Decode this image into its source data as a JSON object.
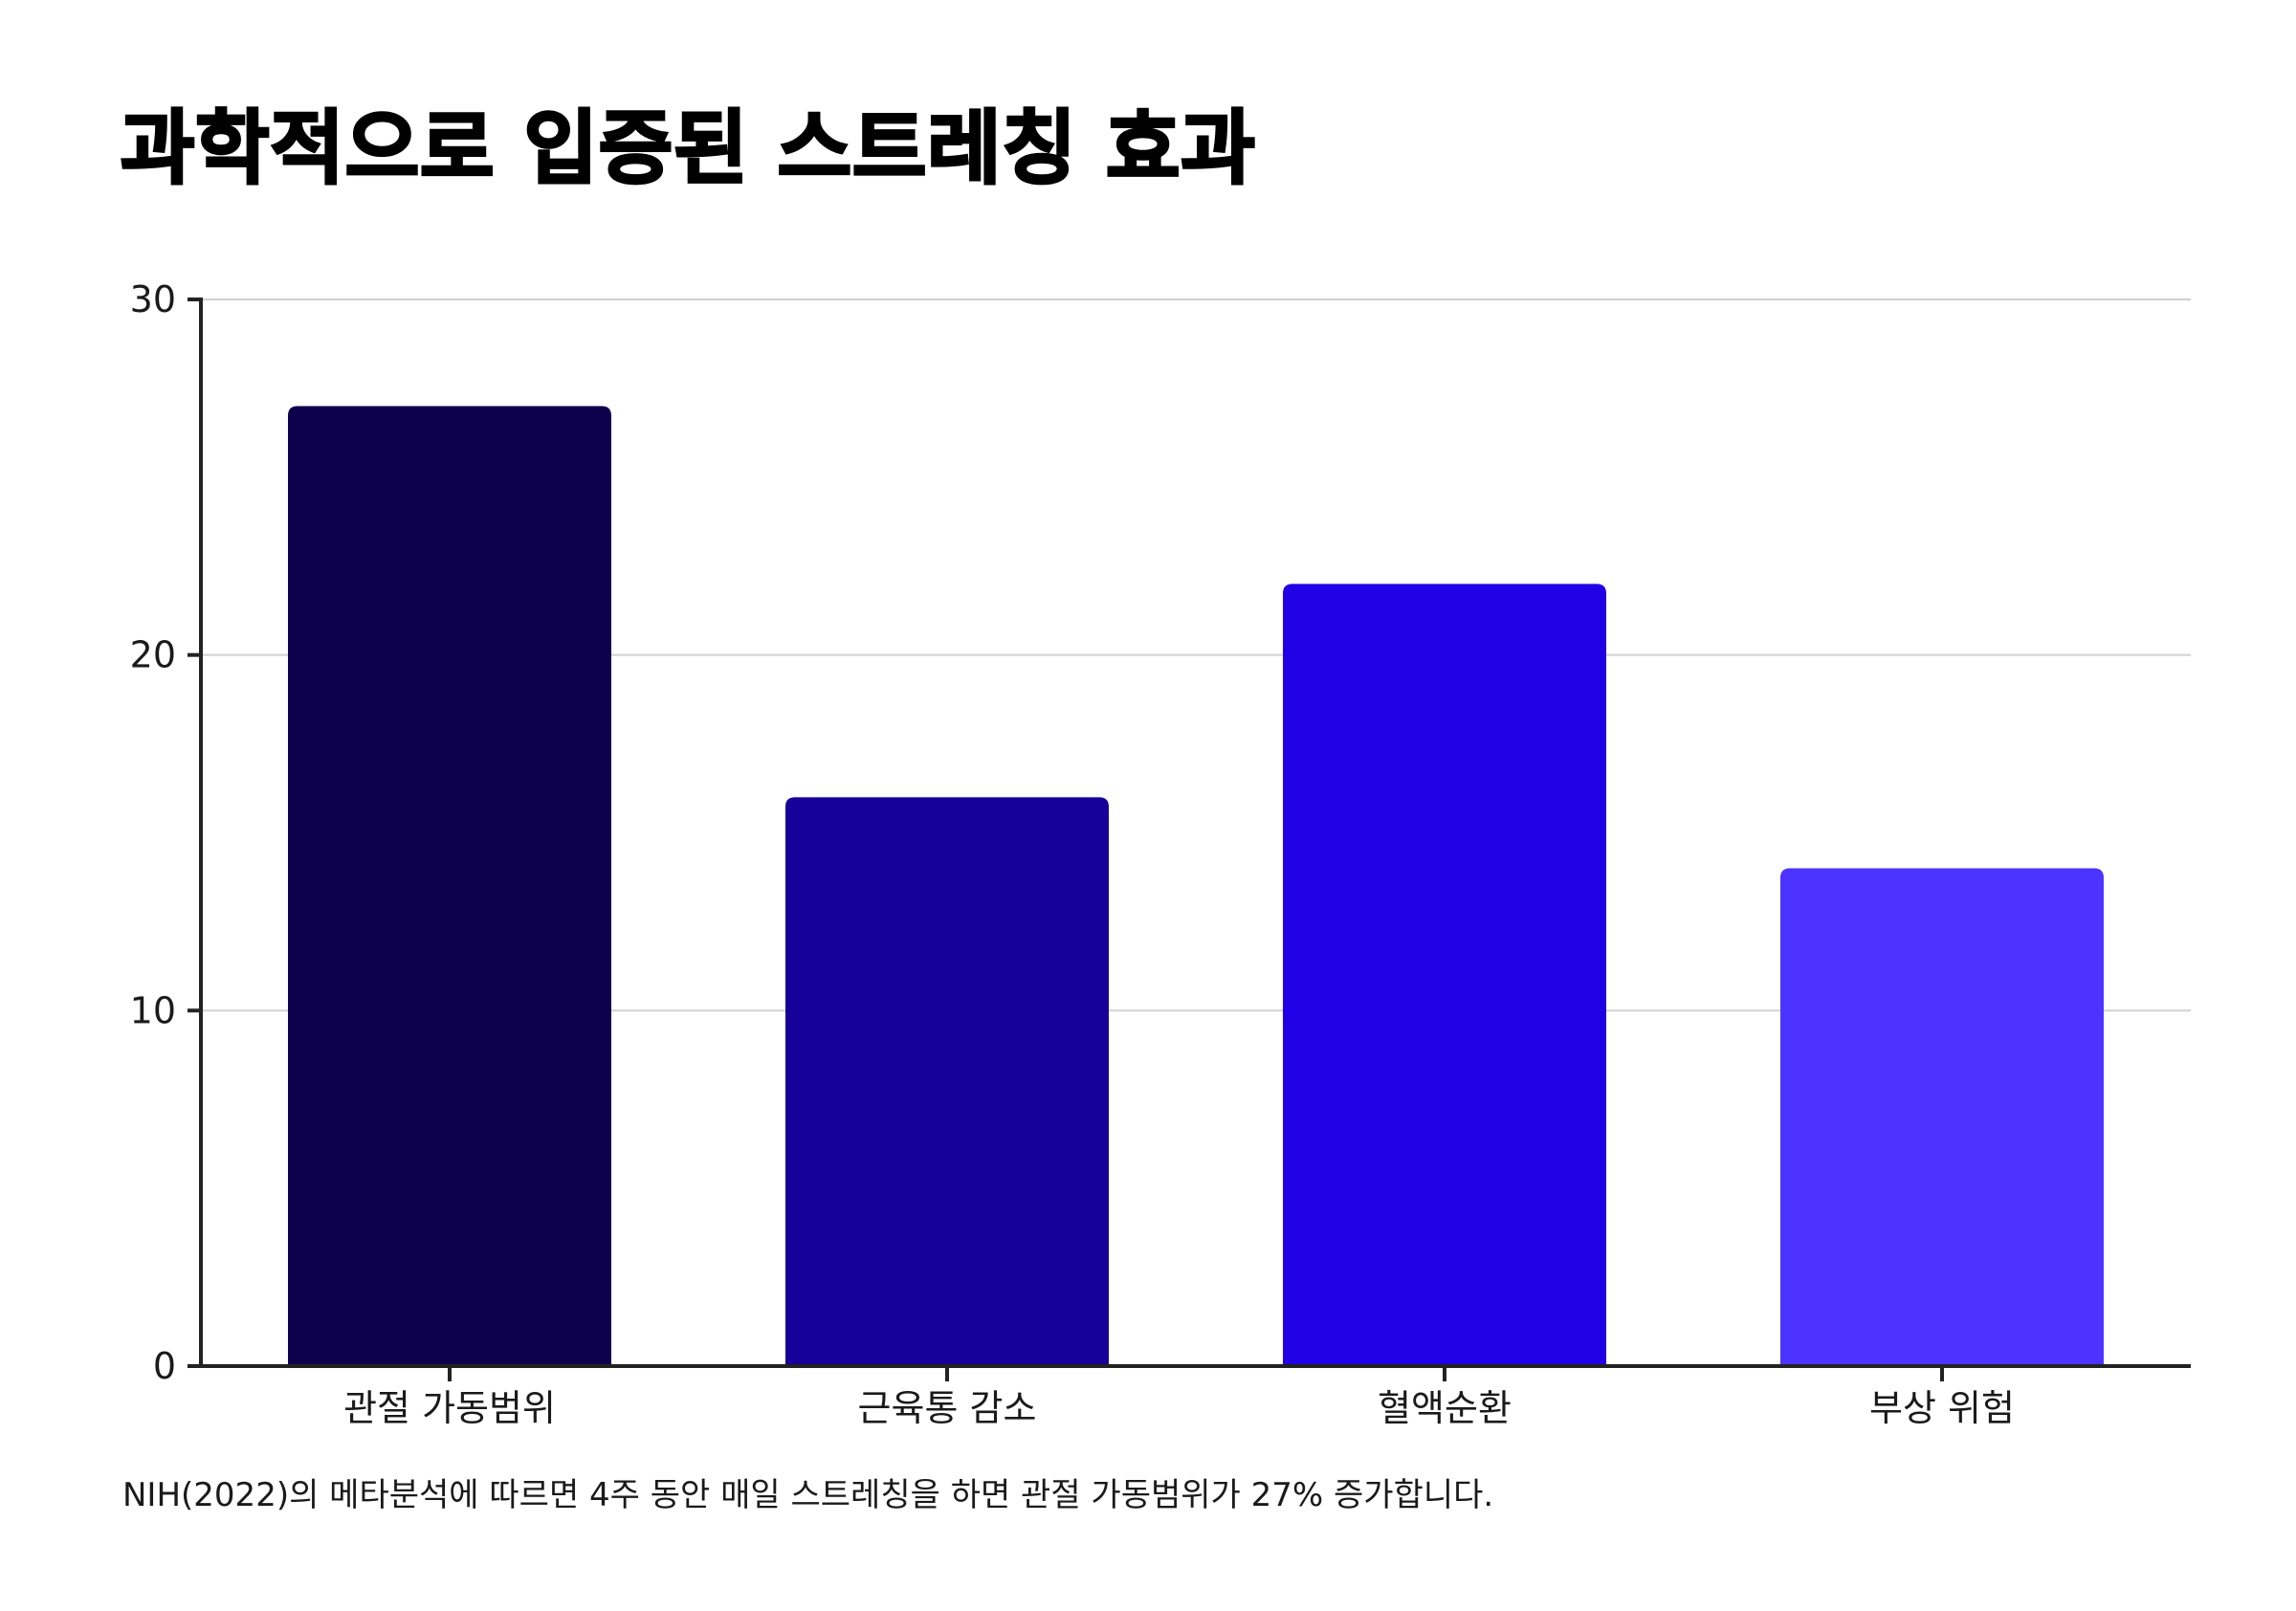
{
  "chart_data": {
    "type": "bar",
    "title": "과학적으로 입증된 스트레칭 효과",
    "categories": [
      "관절 가동범위",
      "근육통 감소",
      "혈액순환",
      "부상 위험"
    ],
    "values": [
      27,
      16,
      22,
      14
    ],
    "bar_colors": [
      "#0d004c",
      "#17009a",
      "#2200e6",
      "#4c33ff"
    ],
    "ylim": [
      0,
      30
    ],
    "yticks": [
      0,
      10,
      20,
      30
    ],
    "grid": true,
    "xlabel": "",
    "ylabel": "",
    "caption": "NIH(2022)의 메타분석에 따르면 4주 동안 매일 스트레칭을 하면 관절 가동범위가 27% 증가합니다."
  },
  "colors": {
    "axis": "#222222",
    "grid": "#d0d0d0"
  }
}
